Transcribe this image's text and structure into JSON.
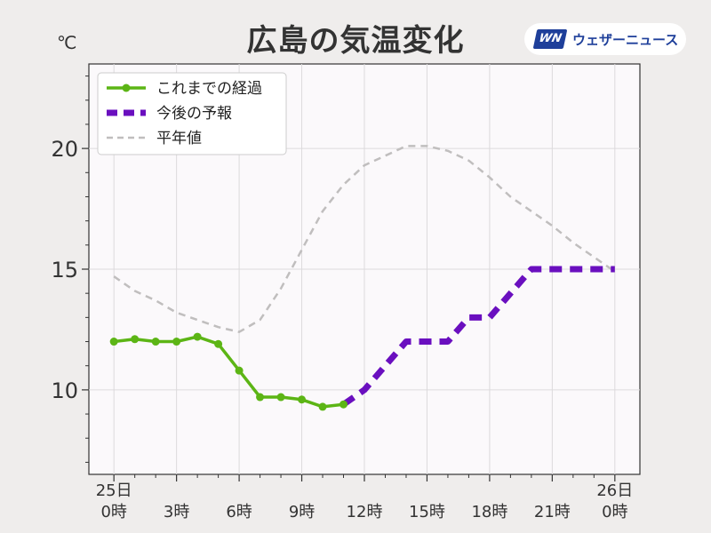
{
  "title": "広島の気温変化",
  "unit_label": "℃",
  "logo": {
    "mark": "WN",
    "text": "ウェザーニュース",
    "icon": "weathernews-logo-icon"
  },
  "colors": {
    "observed": "#5cb515",
    "forecast": "#6a0fbf",
    "normal": "#c0bebe",
    "background": "#efedec",
    "plot_bg": "#fbf9fb"
  },
  "chart_data": {
    "type": "line",
    "title": "広島の気温変化",
    "ylabel": "℃",
    "xlabel": "",
    "ylim": [
      6.5,
      23.5
    ],
    "xlim": [
      -1.2,
      25.2
    ],
    "grid": true,
    "legend_position": "top-left",
    "y_ticks": [
      10,
      15,
      20
    ],
    "x_ticks": [
      {
        "x": 0,
        "line1": "25日",
        "line2": "0時"
      },
      {
        "x": 3,
        "line1": "",
        "line2": "3時"
      },
      {
        "x": 6,
        "line1": "",
        "line2": "6時"
      },
      {
        "x": 9,
        "line1": "",
        "line2": "9時"
      },
      {
        "x": 12,
        "line1": "",
        "line2": "12時"
      },
      {
        "x": 15,
        "line1": "",
        "line2": "15時"
      },
      {
        "x": 18,
        "line1": "",
        "line2": "18時"
      },
      {
        "x": 21,
        "line1": "",
        "line2": "21時"
      },
      {
        "x": 24,
        "line1": "26日",
        "line2": "0時"
      }
    ],
    "series": [
      {
        "name": "これまでの経過",
        "style": "solid-markers",
        "x": [
          0,
          1,
          2,
          3,
          4,
          5,
          6,
          7,
          8,
          9,
          10,
          11
        ],
        "y": [
          12.0,
          12.1,
          12.0,
          12.0,
          12.2,
          11.9,
          10.8,
          9.7,
          9.7,
          9.6,
          9.3,
          9.4
        ]
      },
      {
        "name": "今後の予報",
        "style": "thick-dashed",
        "x": [
          11,
          12,
          13,
          14,
          15,
          16,
          17,
          18,
          19,
          20,
          21,
          22,
          23,
          24
        ],
        "y": [
          9.4,
          10.0,
          11.0,
          12.0,
          12.0,
          12.0,
          13.0,
          13.0,
          14.0,
          15.0,
          15.0,
          15.0,
          15.0,
          15.0
        ]
      },
      {
        "name": "平年値",
        "style": "thin-dashed",
        "x": [
          0,
          1,
          2,
          3,
          4,
          5,
          6,
          7,
          8,
          9,
          10,
          11,
          12,
          13,
          14,
          15,
          16,
          17,
          18,
          19,
          20,
          21,
          22,
          23,
          24
        ],
        "y": [
          14.7,
          14.1,
          13.7,
          13.2,
          12.9,
          12.6,
          12.4,
          12.9,
          14.2,
          15.8,
          17.4,
          18.5,
          19.3,
          19.7,
          20.1,
          20.1,
          19.9,
          19.5,
          18.8,
          18.0,
          17.4,
          16.8,
          16.1,
          15.5,
          14.9
        ]
      }
    ]
  }
}
